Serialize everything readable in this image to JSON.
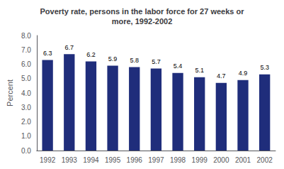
{
  "chart_data": {
    "type": "bar",
    "title": "Poverty rate, persons in the labor force for 27 weeks or\nmore, 1992-2002",
    "categories": [
      "1992",
      "1993",
      "1994",
      "1995",
      "1996",
      "1997",
      "1998",
      "1999",
      "2000",
      "2001",
      "2002"
    ],
    "values": [
      6.3,
      6.7,
      6.2,
      5.9,
      5.8,
      5.7,
      5.4,
      5.1,
      4.7,
      4.9,
      5.3
    ],
    "color": "#1f2d7b",
    "ylabel": "Percent",
    "ylim": [
      0,
      8.0
    ],
    "yticks": [
      {
        "value": 0.0,
        "label": "0.0"
      },
      {
        "value": 1.0,
        "label": "1.0"
      },
      {
        "value": 2.0,
        "label": "2.0"
      },
      {
        "value": 3.0,
        "label": "3.0"
      },
      {
        "value": 4.0,
        "label": "4.0"
      },
      {
        "value": 5.0,
        "label": "5.0"
      },
      {
        "value": 6.0,
        "label": "6.0"
      },
      {
        "value": 7.0,
        "label": "7.0"
      },
      {
        "value": 8.0,
        "label": "8.0"
      }
    ],
    "data_labels": true,
    "grid": false
  }
}
